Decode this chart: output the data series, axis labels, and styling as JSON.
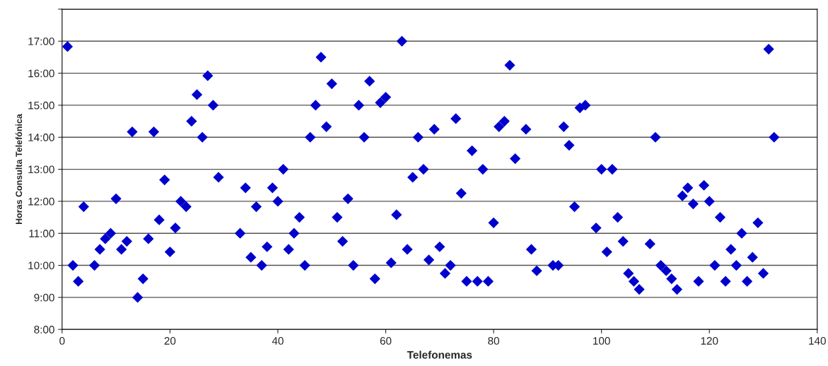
{
  "chart_data": {
    "type": "scatter",
    "xlabel": "Telefonemas",
    "ylabel": "Horas Consulta Telefónica",
    "x": [
      1,
      2,
      3,
      4,
      6,
      7,
      8,
      9,
      10,
      11,
      12,
      13,
      14,
      15,
      16,
      17,
      18,
      19,
      20,
      21,
      22,
      23,
      24,
      25,
      26,
      27,
      28,
      29,
      33,
      34,
      35,
      36,
      37,
      38,
      39,
      40,
      41,
      42,
      43,
      44,
      45,
      46,
      47,
      48,
      49,
      50,
      51,
      52,
      53,
      54,
      55,
      56,
      57,
      58,
      59,
      60,
      61,
      62,
      63,
      64,
      65,
      66,
      67,
      68,
      69,
      70,
      71,
      72,
      73,
      74,
      75,
      76,
      77,
      78,
      79,
      80,
      81,
      82,
      83,
      84,
      86,
      87,
      88,
      91,
      92,
      93,
      94,
      95,
      96,
      97,
      99,
      100,
      101,
      102,
      103,
      104,
      105,
      106,
      107,
      109,
      110,
      111,
      112,
      113,
      114,
      115,
      116,
      117,
      118,
      119,
      120,
      121,
      122,
      123,
      124,
      125,
      126,
      127,
      128,
      129,
      130,
      131,
      132
    ],
    "series": [
      {
        "color": "#0000cc",
        "values": [
          16.83,
          10.0,
          9.5,
          11.83,
          10.0,
          10.5,
          10.83,
          11.0,
          12.08,
          10.5,
          10.75,
          14.17,
          9.0,
          9.58,
          10.83,
          14.17,
          11.42,
          12.67,
          10.42,
          11.17,
          12.0,
          11.83,
          14.5,
          15.33,
          14.0,
          15.92,
          15.0,
          12.75,
          11.0,
          12.42,
          10.25,
          11.83,
          10.0,
          10.58,
          12.42,
          12.0,
          13.0,
          10.5,
          11.0,
          11.5,
          10.0,
          14.0,
          15.0,
          16.5,
          14.33,
          15.67,
          11.5,
          10.75,
          12.08,
          10.0,
          15.0,
          14.0,
          15.75,
          9.58,
          15.08,
          15.25,
          10.08,
          11.58,
          17.0,
          10.5,
          12.75,
          14.0,
          13.0,
          10.17,
          14.25,
          10.58,
          9.75,
          10.0,
          14.58,
          12.25,
          9.5,
          13.58,
          9.5,
          13.0,
          9.5,
          11.33,
          14.33,
          14.5,
          16.25,
          13.33,
          14.25,
          10.5,
          9.83,
          10.0,
          10.0,
          14.33,
          13.75,
          11.83,
          14.92,
          15.0,
          11.17,
          13.0,
          10.42,
          13.0,
          11.5,
          10.75,
          9.75,
          9.5,
          9.25,
          10.67,
          14.0,
          10.0,
          9.83,
          9.58,
          9.25,
          12.17,
          12.42,
          11.92,
          9.5,
          12.5,
          12.0,
          10.0,
          11.5,
          9.5,
          10.5,
          10.0,
          11.0,
          9.5,
          10.25,
          11.33,
          9.75,
          16.75,
          14.0
        ]
      }
    ],
    "xlim": [
      0,
      140
    ],
    "xticks": [
      0,
      20,
      40,
      60,
      80,
      100,
      120,
      140
    ],
    "ylim": [
      8,
      18
    ],
    "yticks": [
      {
        "value": 8,
        "label": "8:00"
      },
      {
        "value": 9,
        "label": "9:00"
      },
      {
        "value": 10,
        "label": "10:00"
      },
      {
        "value": 11,
        "label": "11:00"
      },
      {
        "value": 12,
        "label": "12:00"
      },
      {
        "value": 13,
        "label": "13:00"
      },
      {
        "value": 14,
        "label": "14:00"
      },
      {
        "value": 15,
        "label": "15:00"
      },
      {
        "value": 16,
        "label": "16:00"
      },
      {
        "value": 17,
        "label": "17:00"
      },
      {
        "value": 18,
        "label": null
      }
    ],
    "grid": "y",
    "marker": "diamond"
  }
}
